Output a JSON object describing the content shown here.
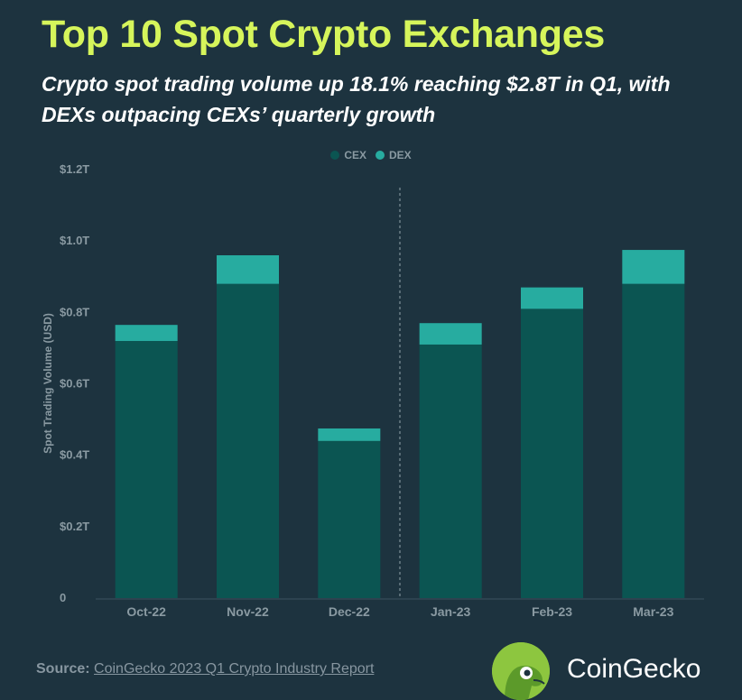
{
  "header": {
    "title": "Top 10 Spot Crypto Exchanges",
    "subtitle": "Crypto spot trading volume up 18.1% reaching $2.8T in Q1, with DEXs outpacing CEXs’ quarterly growth"
  },
  "colors": {
    "background": "#1d333f",
    "title": "#d6f55b",
    "cex": "#0b5552",
    "dex": "#27aca0",
    "axis_text": "#8a9aa2"
  },
  "chart_data": {
    "type": "bar",
    "stacked": true,
    "categories": [
      "Oct-22",
      "Nov-22",
      "Dec-22",
      "Jan-23",
      "Feb-23",
      "Mar-23"
    ],
    "series": [
      {
        "name": "CEX",
        "values": [
          0.72,
          0.88,
          0.44,
          0.71,
          0.81,
          0.88
        ]
      },
      {
        "name": "DEX",
        "values": [
          0.045,
          0.08,
          0.035,
          0.06,
          0.06,
          0.095
        ]
      }
    ],
    "ylabel": "Spot Trading Volume (USD)",
    "ylim": [
      0,
      1.2
    ],
    "yticks": [
      "0",
      "$0.2T",
      "$0.4T",
      "$0.6T",
      "$0.8T",
      "$1.0T",
      "$1.2T"
    ],
    "divider_after": "Dec-22",
    "grid": false,
    "legend_position": "top"
  },
  "footer": {
    "source_label": "Source:",
    "source_text": "CoinGecko 2023 Q1 Crypto Industry Report",
    "brand": "CoinGecko",
    "brand_icon": "gecko-logo-icon"
  }
}
